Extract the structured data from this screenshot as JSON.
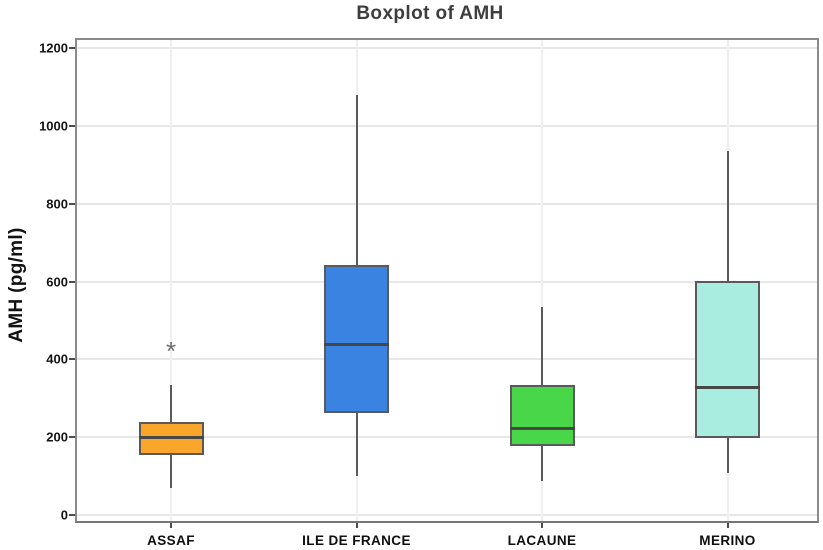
{
  "title": "Boxplot of AMH",
  "chart_data": {
    "type": "boxplot",
    "title": "Boxplot of AMH",
    "xlabel": "",
    "ylabel": "AMH (pg/ml)",
    "ylim": [
      0,
      1200
    ],
    "yticks": [
      0,
      200,
      400,
      600,
      800,
      1000,
      1200
    ],
    "grid": true,
    "legend": "none",
    "categories": [
      "ASSAF",
      "ILE DE FRANCE",
      "LACAUNE",
      "MERINO"
    ],
    "series": [
      {
        "name": "ASSAF",
        "color": "#F9A62B",
        "whisker_low": 70,
        "q1": 155,
        "median": 200,
        "q3": 238,
        "whisker_high": 333,
        "outliers": [
          413
        ]
      },
      {
        "name": "ILE DE FRANCE",
        "color": "#3B83E1",
        "whisker_low": 100,
        "q1": 262,
        "median": 438,
        "q3": 643,
        "whisker_high": 1080,
        "outliers": []
      },
      {
        "name": "LACAUNE",
        "color": "#49D649",
        "whisker_low": 88,
        "q1": 178,
        "median": 222,
        "q3": 335,
        "whisker_high": 535,
        "outliers": []
      },
      {
        "name": "MERINO",
        "color": "#A9EDE0",
        "whisker_low": 108,
        "q1": 198,
        "median": 327,
        "q3": 602,
        "whisker_high": 936,
        "outliers": []
      }
    ],
    "style": {
      "box_stroke": "#5a5a5a",
      "median_color": "#474747",
      "outlier_symbol": "*",
      "grid_color": "#e7e7e7",
      "border_color": "#8b8b8b"
    }
  }
}
